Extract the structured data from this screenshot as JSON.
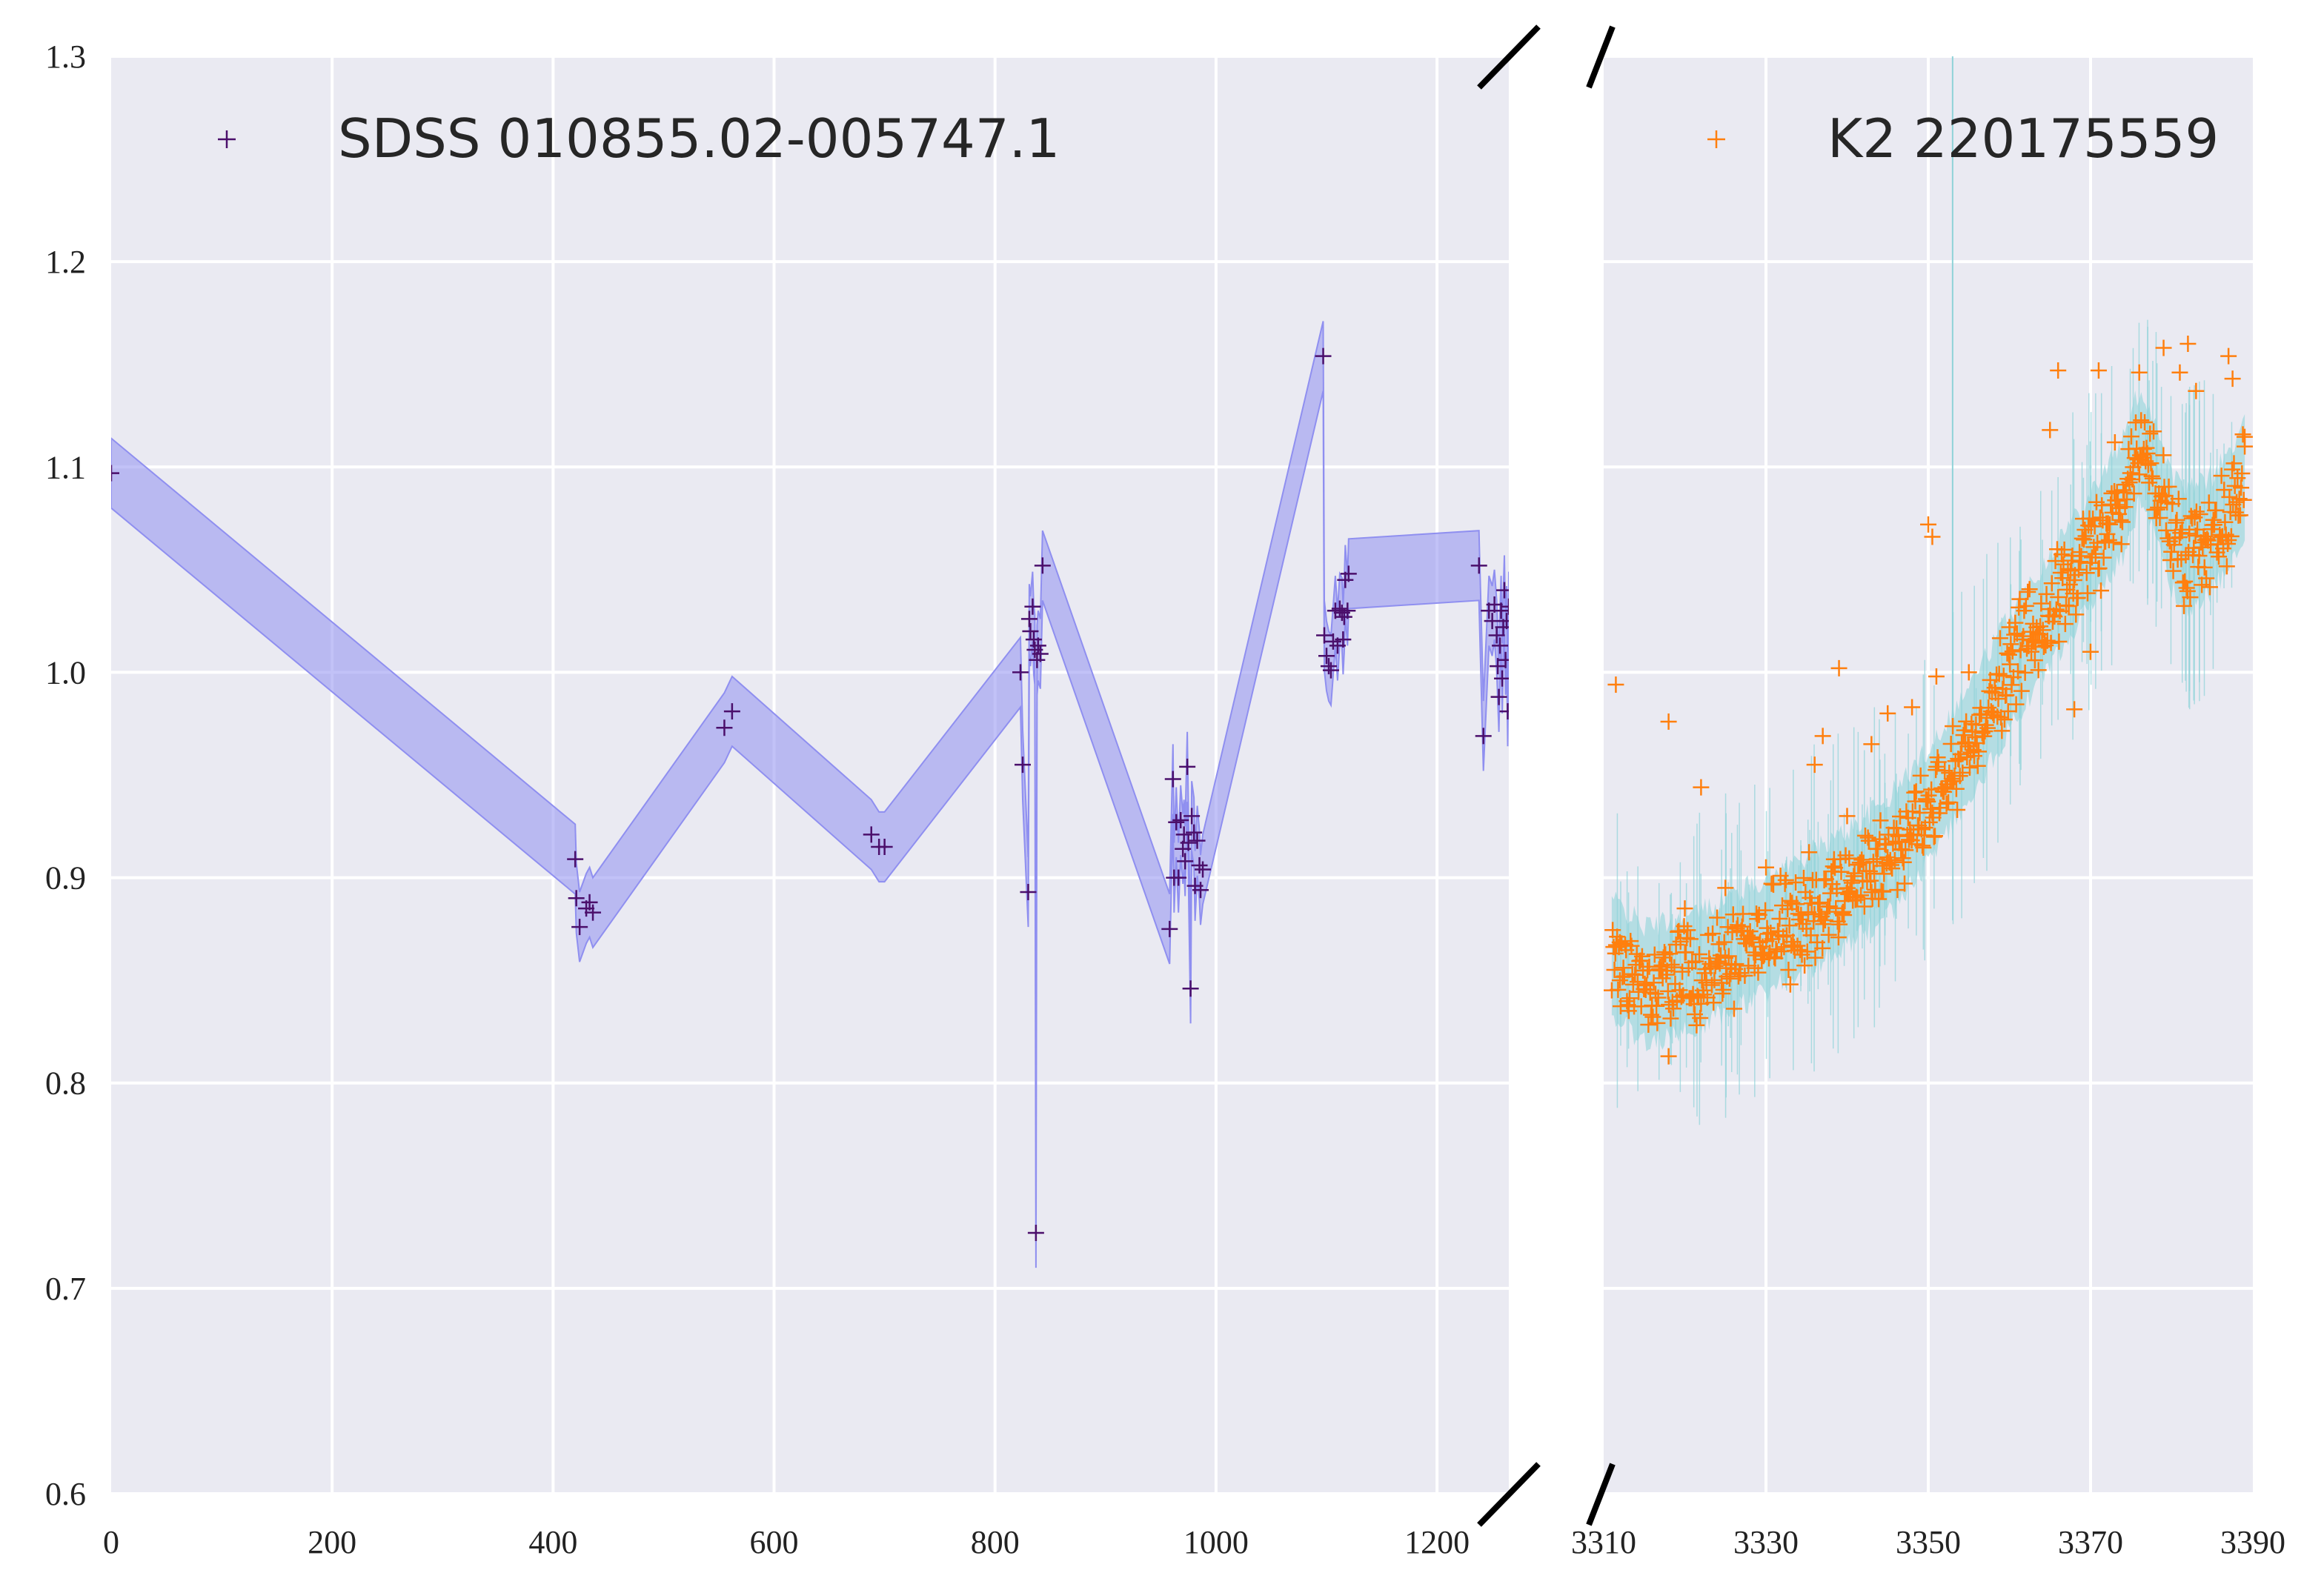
{
  "chart_data": {
    "type": "scatter",
    "title": "",
    "xlabel": "",
    "ylabel": "",
    "y_ticks": [
      "0.6",
      "0.7",
      "0.8",
      "0.9",
      "1.0",
      "1.1",
      "1.2",
      "1.3"
    ],
    "ylim": [
      0.6,
      1.3
    ],
    "grid": true,
    "colors": {
      "background": "#eaeaf2",
      "grid": "#ffffff",
      "sdss_points": "#4b0f6b",
      "sdss_band": "#8f8ff0",
      "k2_points": "#ff7f0e",
      "k2_band": "#8fd3d8"
    },
    "panels": [
      {
        "name": "left",
        "xlim": [
          0,
          1265
        ],
        "x_ticks": [
          "0",
          "200",
          "400",
          "600",
          "800",
          "1000",
          "1200"
        ],
        "legend": {
          "label": "SDSS 010855.02-005747.1",
          "position": "top-left"
        },
        "series": [
          {
            "name": "SDSS 010855.02-005747.1",
            "marker": "+",
            "points": [
              [
                0,
                1.097
              ],
              [
                420,
                0.909
              ],
              [
                421,
                0.89
              ],
              [
                424,
                0.876
              ],
              [
                430,
                0.885
              ],
              [
                433,
                0.888
              ],
              [
                436,
                0.883
              ],
              [
                555,
                0.973
              ],
              [
                562,
                0.981
              ],
              [
                688,
                0.921
              ],
              [
                695,
                0.915
              ],
              [
                700,
                0.915
              ],
              [
                823,
                1.0
              ],
              [
                825,
                0.955
              ],
              [
                830,
                0.893
              ],
              [
                831,
                1.026
              ],
              [
                832,
                1.02
              ],
              [
                834,
                1.032
              ],
              [
                835,
                1.016
              ],
              [
                836,
                1.011
              ],
              [
                837,
                0.727
              ],
              [
                838,
                1.006
              ],
              [
                839,
                1.013
              ],
              [
                841,
                1.009
              ],
              [
                843,
                1.052
              ],
              [
                958,
                0.875
              ],
              [
                961,
                0.948
              ],
              [
                962,
                0.9
              ],
              [
                964,
                0.927
              ],
              [
                966,
                0.9
              ],
              [
                968,
                0.928
              ],
              [
                970,
                0.914
              ],
              [
                971,
                0.921
              ],
              [
                972,
                0.908
              ],
              [
                974,
                0.954
              ],
              [
                975,
                0.917
              ],
              [
                977,
                0.846
              ],
              [
                978,
                0.93
              ],
              [
                980,
                0.922
              ],
              [
                981,
                0.896
              ],
              [
                983,
                0.918
              ],
              [
                985,
                0.906
              ],
              [
                986,
                0.894
              ],
              [
                988,
                0.904
              ],
              [
                1097,
                1.154
              ],
              [
                1098,
                1.018
              ],
              [
                1100,
                1.008
              ],
              [
                1102,
                1.003
              ],
              [
                1104,
                1.001
              ],
              [
                1106,
                1.015
              ],
              [
                1108,
                1.03
              ],
              [
                1110,
                1.013
              ],
              [
                1112,
                1.031
              ],
              [
                1114,
                1.029
              ],
              [
                1115,
                1.016
              ],
              [
                1116,
                1.027
              ],
              [
                1117,
                1.045
              ],
              [
                1119,
                1.03
              ],
              [
                1120,
                1.048
              ],
              [
                1238,
                1.052
              ],
              [
                1242,
                0.969
              ],
              [
                1247,
                1.03
              ],
              [
                1250,
                1.025
              ],
              [
                1252,
                1.033
              ],
              [
                1254,
                1.018
              ],
              [
                1255,
                1.003
              ],
              [
                1256,
                0.988
              ],
              [
                1257,
                1.013
              ],
              [
                1258,
                1.03
              ],
              [
                1259,
                0.997
              ],
              [
                1260,
                1.022
              ],
              [
                1261,
                1.04
              ],
              [
                1262,
                1.006
              ],
              [
                1263,
                1.025
              ],
              [
                1264,
                0.981
              ],
              [
                1265,
                1.032
              ]
            ]
          }
        ]
      },
      {
        "name": "right",
        "xlim": [
          3310,
          3390
        ],
        "x_ticks": [
          "3310",
          "3330",
          "3350",
          "3370",
          "3390"
        ],
        "legend": {
          "label": "K2 220175559",
          "position": "top-right"
        },
        "series": [
          {
            "name": "K2 220175559",
            "marker": "+",
            "trend": [
              [
                3311,
                0.862
              ],
              [
                3315,
                0.848
              ],
              [
                3320,
                0.852
              ],
              [
                3325,
                0.862
              ],
              [
                3330,
                0.872
              ],
              [
                3335,
                0.883
              ],
              [
                3340,
                0.895
              ],
              [
                3345,
                0.91
              ],
              [
                3350,
                0.935
              ],
              [
                3355,
                0.965
              ],
              [
                3360,
                1.0
              ],
              [
                3365,
                1.03
              ],
              [
                3370,
                1.06
              ],
              [
                3374,
                1.085
              ],
              [
                3376,
                1.11
              ],
              [
                3378,
                1.095
              ],
              [
                3380,
                1.068
              ],
              [
                3382,
                1.06
              ],
              [
                3385,
                1.068
              ],
              [
                3388,
                1.085
              ],
              [
                3389,
                1.095
              ]
            ],
            "outliers": [
              [
                3311.5,
                0.994
              ],
              [
                3318,
                0.976
              ],
              [
                3322,
                0.944
              ],
              [
                3336,
                0.955
              ],
              [
                3337,
                0.969
              ],
              [
                3339,
                1.002
              ],
              [
                3343,
                0.965
              ],
              [
                3345,
                0.98
              ],
              [
                3348,
                0.983
              ],
              [
                3350,
                1.072
              ],
              [
                3350.5,
                1.066
              ],
              [
                3351,
                0.998
              ],
              [
                3360,
                1.022
              ],
              [
                3365,
                1.118
              ],
              [
                3366,
                1.147
              ],
              [
                3368,
                0.982
              ],
              [
                3371,
                1.147
              ],
              [
                3373,
                1.112
              ],
              [
                3376,
                1.146
              ],
              [
                3379,
                1.158
              ],
              [
                3381,
                1.146
              ],
              [
                3382,
                1.16
              ],
              [
                3383,
                1.137
              ],
              [
                3387,
                1.154
              ],
              [
                3387.5,
                1.143
              ],
              [
                3389,
                1.11
              ],
              [
                3318,
                0.813
              ],
              [
                3312,
                0.85
              ],
              [
                3320,
                0.885
              ],
              [
                3325,
                0.895
              ],
              [
                3330,
                0.905
              ],
              [
                3333,
                0.848
              ],
              [
                3340,
                0.93
              ],
              [
                3355,
                1.0
              ],
              [
                3370,
                1.01
              ]
            ]
          }
        ]
      }
    ]
  }
}
